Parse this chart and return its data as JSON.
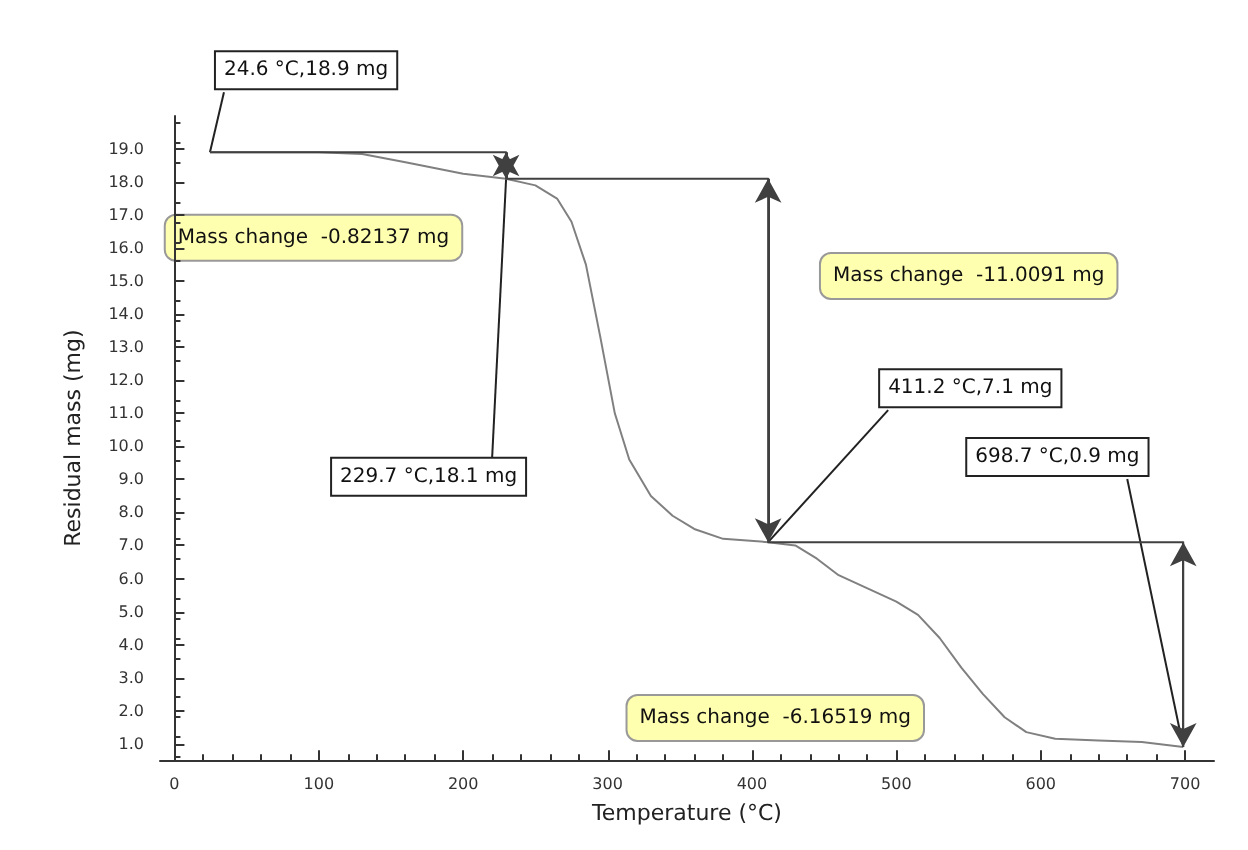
{
  "chart_data": {
    "type": "line",
    "xlabel": "Temperature (°C)",
    "ylabel": "Residual mass (mg)",
    "x": [
      24.6,
      60,
      100,
      130,
      160,
      200,
      229.7,
      250,
      265,
      275,
      285,
      295,
      305,
      315,
      330,
      345,
      360,
      380,
      411.2,
      430,
      445,
      460,
      480,
      500,
      515,
      530,
      545,
      560,
      575,
      590,
      610,
      640,
      670,
      698.7
    ],
    "series": [
      {
        "color": "#808080",
        "values": [
          18.9,
          18.9,
          18.9,
          18.85,
          18.6,
          18.25,
          18.1,
          17.9,
          17.5,
          16.8,
          15.5,
          13.3,
          11.0,
          9.6,
          8.5,
          7.9,
          7.5,
          7.2,
          7.1,
          7.0,
          6.6,
          6.1,
          5.7,
          5.3,
          4.9,
          4.2,
          3.3,
          2.5,
          1.8,
          1.35,
          1.15,
          1.1,
          1.05,
          0.9
        ]
      },
      {
        "color": "#404040",
        "x": [
          24.6,
          229.7,
          229.7,
          411.2,
          411.2,
          698.7,
          698.7
        ],
        "values": [
          18.9,
          18.9,
          18.1,
          18.1,
          7.1,
          7.1,
          0.9
        ]
      }
    ],
    "xlim": [
      -10,
      720
    ],
    "xticks": [
      0,
      100,
      200,
      300,
      400,
      500,
      600,
      700
    ],
    "ylim": [
      0.5,
      20
    ],
    "yticks": [
      {
        "value": 1,
        "label": "1.0"
      },
      {
        "value": 2,
        "label": "2.0"
      },
      {
        "value": 3,
        "label": "3.0"
      },
      {
        "value": 4,
        "label": "4.0"
      },
      {
        "value": 5,
        "label": "5.0"
      },
      {
        "value": 6,
        "label": "6.0"
      },
      {
        "value": 7,
        "label": "7.0"
      },
      {
        "value": 8,
        "label": "8.0"
      },
      {
        "value": 9,
        "label": "9.0"
      },
      {
        "value": 10,
        "label": "10.0"
      },
      {
        "value": 11,
        "label": "11.0"
      },
      {
        "value": 12,
        "label": "12.0"
      },
      {
        "value": 13,
        "label": "13.0"
      },
      {
        "value": 14,
        "label": "14.0"
      },
      {
        "value": 15,
        "label": "15.0"
      },
      {
        "value": 16,
        "label": "16.0"
      },
      {
        "value": 17,
        "label": "17.0"
      },
      {
        "value": 18,
        "label": "18.0"
      },
      {
        "value": 19,
        "label": "19.0"
      }
    ],
    "grid": false,
    "marker": "none",
    "line_style": "solid",
    "annotations": [
      {
        "text": "24.6 °C,18.9 mg",
        "x": 24.6,
        "y": 18.9
      },
      {
        "text": "229.7 °C,18.1 mg",
        "x": 229.7,
        "y": 18.1
      },
      {
        "text": "411.2 °C,7.1 mg",
        "x": 411.2,
        "y": 7.1
      },
      {
        "text": "698.7 °C,0.9 mg",
        "x": 698.7,
        "y": 0.9
      },
      "Mass change  -0.82137 mg",
      "Mass change  -11.0091 mg",
      "Mass change  -6.16519 mg"
    ]
  }
}
